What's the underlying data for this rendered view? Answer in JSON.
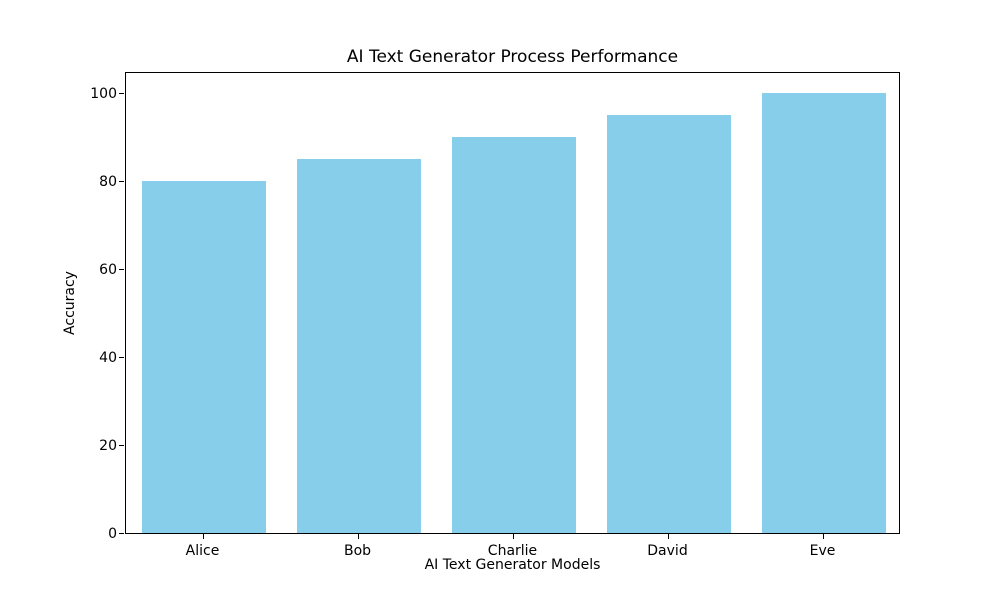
{
  "chart_data": {
    "type": "bar",
    "title": "AI Text Generator Process Performance",
    "xlabel": "AI Text Generator Models",
    "ylabel": "Accuracy",
    "categories": [
      "Alice",
      "Bob",
      "Charlie",
      "David",
      "Eve"
    ],
    "values": [
      80,
      85,
      90,
      95,
      100
    ],
    "ylim": [
      0,
      105
    ],
    "yticks": [
      0,
      20,
      40,
      60,
      80,
      100
    ],
    "bar_color": "#87CEEB",
    "axis_color": "#000000",
    "background_color": "#FFFFFF",
    "grid": "off",
    "legend": "none",
    "bar_width_fraction": 0.8
  }
}
